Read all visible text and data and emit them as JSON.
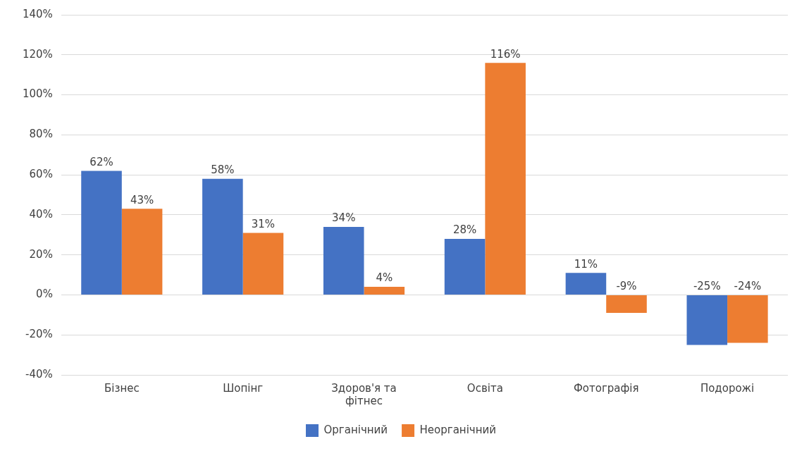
{
  "chart_data": {
    "type": "bar",
    "categories": [
      "Бізнес",
      "Шопінг",
      "Здоров'я та фітнес",
      "Освіта",
      "Фотографія",
      "Подорожі"
    ],
    "series": [
      {
        "name": "Органічний",
        "color": "#4472c4",
        "values": [
          62,
          58,
          34,
          28,
          11,
          -25
        ],
        "value_labels": [
          "62%",
          "58%",
          "34%",
          "28%",
          "11%",
          "-25%"
        ]
      },
      {
        "name": "Неорганічний",
        "color": "#ed7d31",
        "values": [
          43,
          31,
          4,
          116,
          -9,
          -24
        ],
        "value_labels": [
          "43%",
          "31%",
          "4%",
          "116%",
          "-9%",
          "-24%"
        ]
      }
    ],
    "ylim": [
      -40,
      140
    ],
    "yticks": [
      {
        "value": -40,
        "label": "-40%"
      },
      {
        "value": -20,
        "label": "-20%"
      },
      {
        "value": 0,
        "label": "0%"
      },
      {
        "value": 20,
        "label": "20%"
      },
      {
        "value": 40,
        "label": "40%"
      },
      {
        "value": 60,
        "label": "60%"
      },
      {
        "value": 80,
        "label": "80%"
      },
      {
        "value": 100,
        "label": "100%"
      },
      {
        "value": 120,
        "label": "120%"
      },
      {
        "value": 140,
        "label": "140%"
      }
    ],
    "grid": "y",
    "legend": "bottom"
  }
}
